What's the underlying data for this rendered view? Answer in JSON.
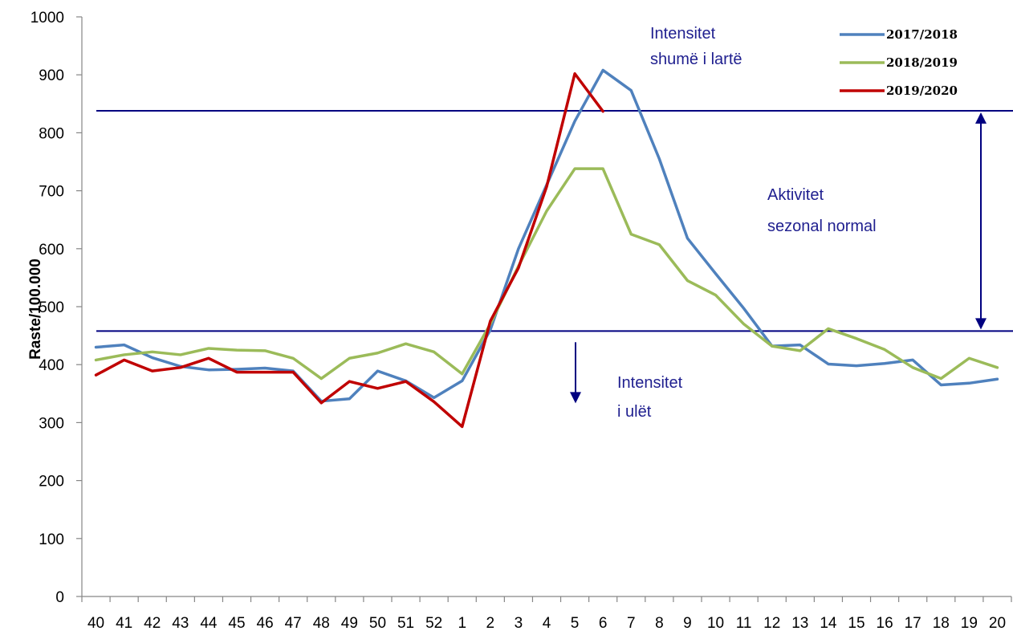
{
  "chart_data": {
    "type": "line",
    "ylabel": "Raste/100.000",
    "xlabel": "",
    "ylim": [
      0,
      1000
    ],
    "yticks": [
      "0",
      "100",
      "200",
      "300",
      "400",
      "500",
      "600",
      "700",
      "800",
      "900",
      "1000"
    ],
    "categories": [
      "40",
      "41",
      "42",
      "43",
      "44",
      "45",
      "46",
      "47",
      "48",
      "49",
      "50",
      "51",
      "52",
      "1",
      "2",
      "3",
      "4",
      "5",
      "6",
      "7",
      "8",
      "9",
      "10",
      "11",
      "12",
      "13",
      "14",
      "15",
      "16",
      "17",
      "18",
      "19",
      "20"
    ],
    "series": [
      {
        "name": "2017/2018",
        "color": "#4f81bd",
        "values": [
          430,
          434,
          412,
          397,
          391,
          392,
          394,
          389,
          337,
          341,
          389,
          372,
          343,
          372,
          460,
          600,
          710,
          820,
          908,
          873,
          755,
          618,
          557,
          497,
          432,
          434,
          401,
          398,
          402,
          408,
          365,
          368,
          375
        ]
      },
      {
        "name": "2018/2019",
        "color": "#9bbb59",
        "values": [
          408,
          417,
          422,
          417,
          428,
          425,
          424,
          411,
          376,
          411,
          420,
          436,
          422,
          384,
          470,
          570,
          665,
          738,
          738,
          625,
          607,
          545,
          520,
          470,
          432,
          424,
          462,
          445,
          426,
          395,
          376,
          411,
          395
        ]
      },
      {
        "name": "2019/2020",
        "color": "#c00000",
        "values": [
          382,
          408,
          389,
          395,
          411,
          387,
          387,
          387,
          334,
          371,
          359,
          371,
          336,
          293,
          475,
          567,
          707,
          902,
          837,
          null,
          null,
          null,
          null,
          null,
          null,
          null,
          null,
          null,
          null,
          null,
          null,
          null,
          null
        ]
      }
    ],
    "thresholds": [
      838,
      458
    ],
    "annotations": {
      "very_high_line1": "Intensitet",
      "very_high_line2": "shumë i lartë",
      "normal_line1": "Aktivitet",
      "normal_line2": "sezonal normal",
      "low_line1": "Intensitet",
      "low_line2": "i ulët"
    },
    "annotation_color": "#000080",
    "legend_position": "top-right",
    "grid": false
  }
}
